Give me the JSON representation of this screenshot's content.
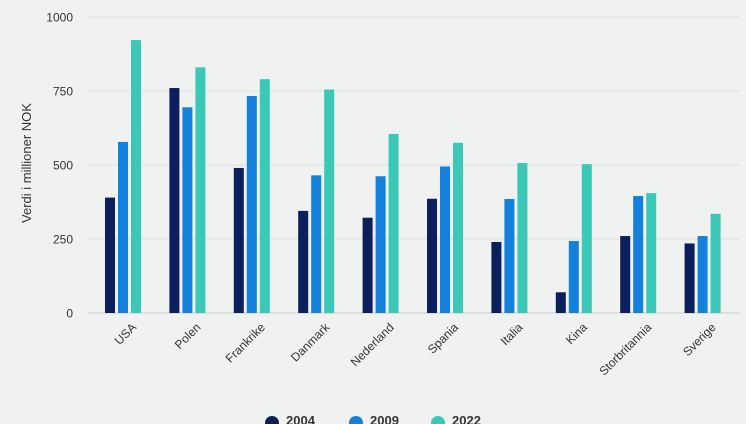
{
  "chart_data": {
    "type": "bar",
    "title": "",
    "xlabel": "",
    "ylabel": "Verdi i millioner NOK",
    "ylim": [
      0,
      1000
    ],
    "yticks": [
      0,
      250,
      500,
      750,
      1000
    ],
    "grid": true,
    "legend_position": "bottom",
    "categories": [
      "USA",
      "Polen",
      "Frankrike",
      "Danmark",
      "Nederland",
      "Spania",
      "Italia",
      "Kina",
      "Storbritannia",
      "Sverige"
    ],
    "series": [
      {
        "name": "2004",
        "color": "#0b1f5c",
        "values": [
          390,
          760,
          490,
          345,
          322,
          386,
          240,
          70,
          260,
          235
        ]
      },
      {
        "name": "2009",
        "color": "#1380dc",
        "values": [
          578,
          695,
          733,
          465,
          462,
          495,
          385,
          243,
          395,
          260
        ]
      },
      {
        "name": "2022",
        "color": "#3cc8b6",
        "values": [
          922,
          830,
          790,
          755,
          605,
          575,
          507,
          503,
          405,
          335
        ]
      }
    ]
  }
}
